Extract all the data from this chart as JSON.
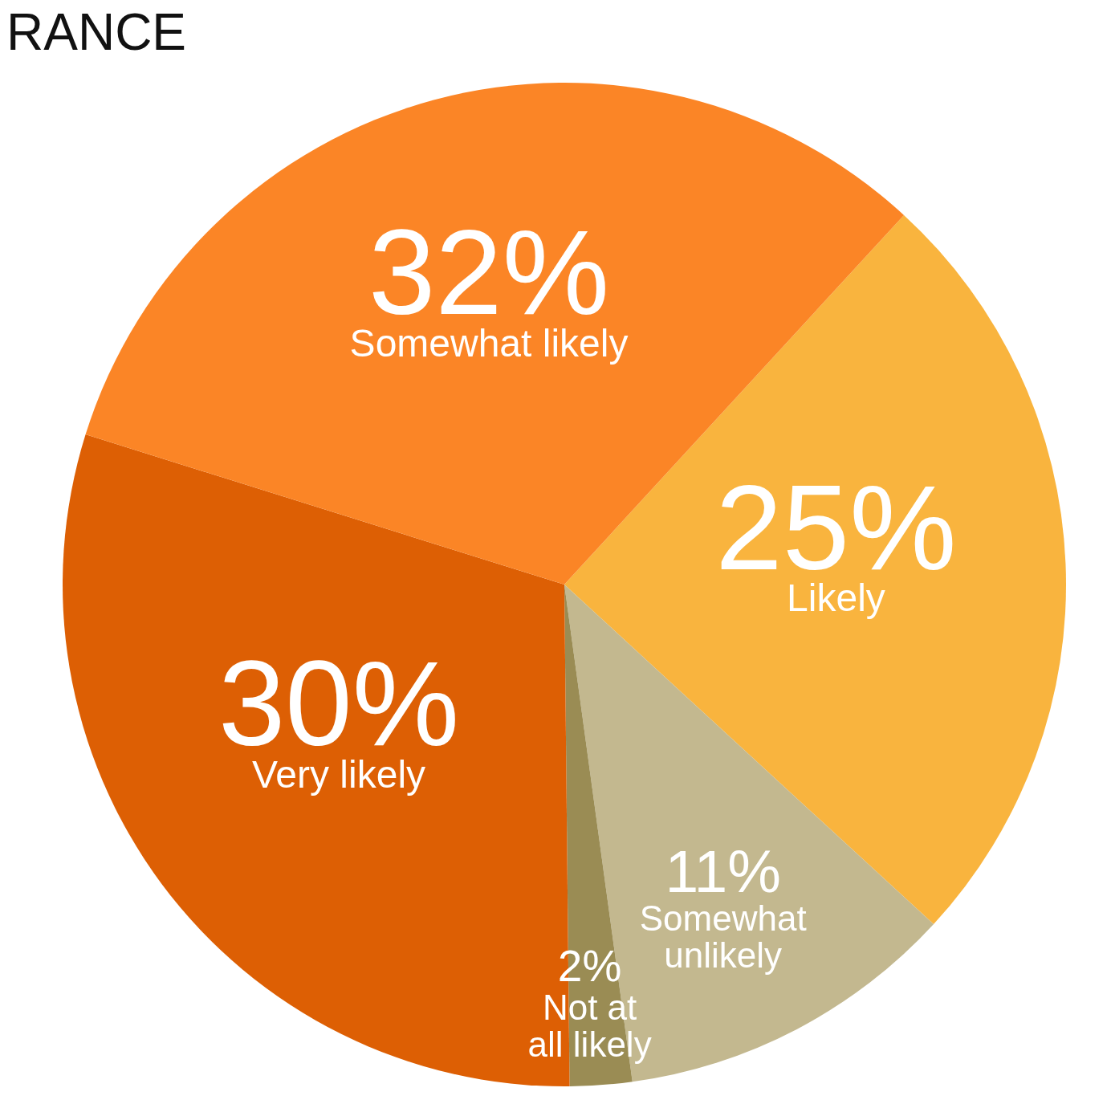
{
  "chart_data": {
    "type": "pie",
    "title": "RANCE",
    "categories": [
      "Likely",
      "Somewhat unlikely",
      "Not at all likely",
      "Very likely",
      "Somewhat likely"
    ],
    "values": [
      25,
      11,
      2,
      30,
      32
    ],
    "value_labels": [
      "25%",
      "11%",
      "2%",
      "30%",
      "32%"
    ],
    "colors": [
      "#f9b43e",
      "#c3b88f",
      "#9a8c54",
      "#dd5f04",
      "#fb8526"
    ]
  }
}
